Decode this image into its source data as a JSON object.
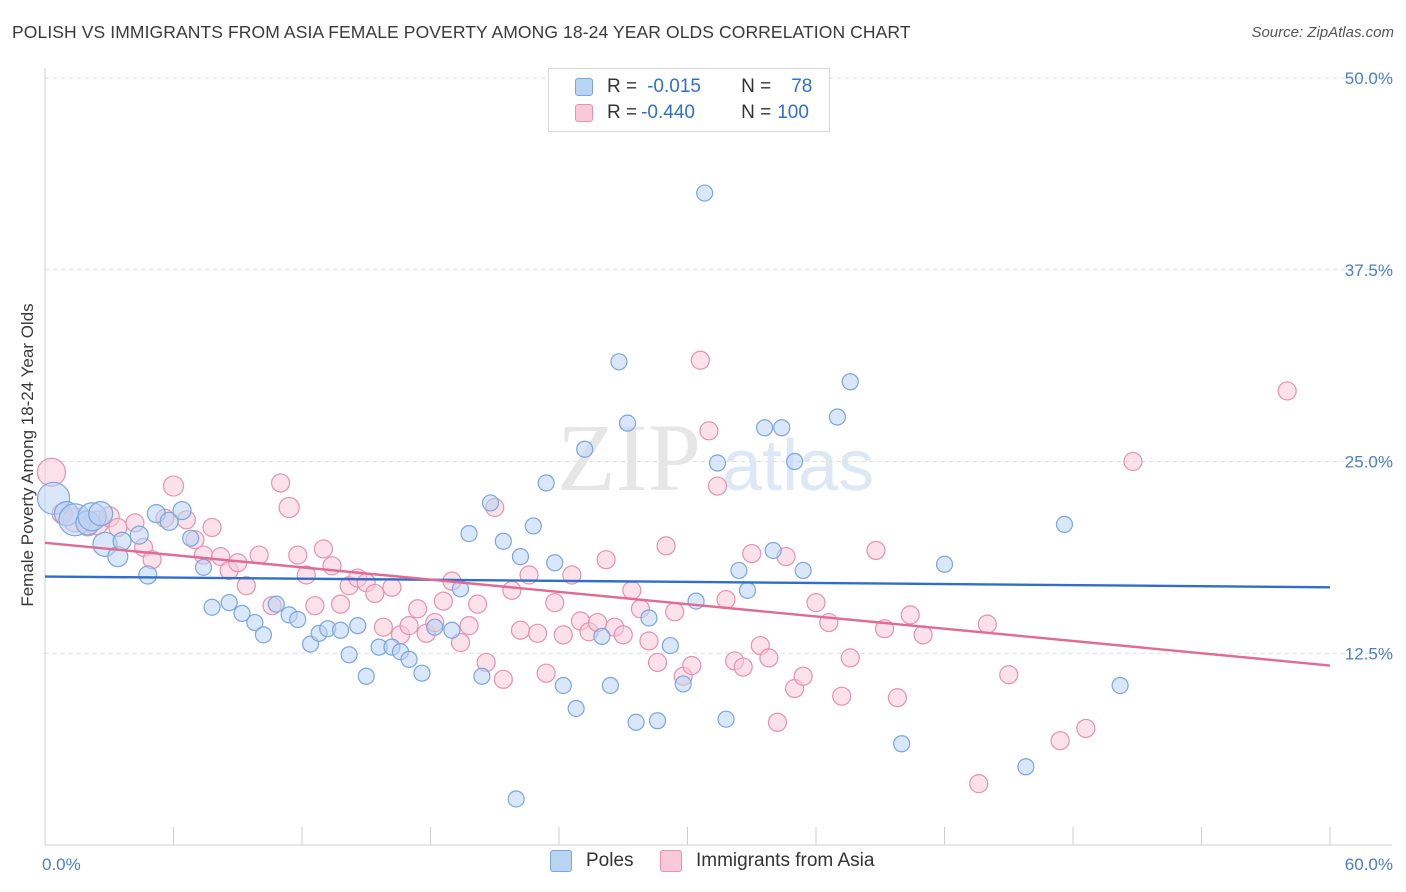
{
  "title": "POLISH VS IMMIGRANTS FROM ASIA FEMALE POVERTY AMONG 18-24 YEAR OLDS CORRELATION CHART",
  "source": "Source: ZipAtlas.com",
  "watermark": {
    "zip": "ZIP",
    "atlas": "atlas"
  },
  "legend_top": {
    "rows": [
      {
        "r_label": "R =",
        "r_value": "-0.015",
        "n_label": "N =",
        "n_value": "78",
        "color": "#b9d3f3"
      },
      {
        "r_label": "R =",
        "r_value": "-0.440",
        "n_label": "N =",
        "n_value": "100",
        "color": "#f8c9d8"
      }
    ]
  },
  "chart_data": {
    "type": "scatter",
    "ylabel": "Female Poverty Among 18-24 Year Olds",
    "xlim": [
      0,
      60
    ],
    "ylim": [
      0,
      50
    ],
    "x_tick_labels": [
      "0.0%",
      "60.0%"
    ],
    "y_ticks": [
      12.5,
      25.0,
      37.5,
      50.0
    ],
    "y_tick_labels": [
      "12.5%",
      "25.0%",
      "37.5%",
      "50.0%"
    ],
    "grid": true,
    "legend_position": "bottom",
    "series": [
      {
        "name": "Poles",
        "color": "#b9d3f3",
        "stroke": "#7aa6de",
        "line_color": "#2f6fcb",
        "trend": {
          "x": [
            0,
            60
          ],
          "y": [
            17.5,
            16.8
          ]
        },
        "points": [
          [
            0.4,
            22.6,
            16
          ],
          [
            1.0,
            21.6,
            12
          ],
          [
            1.4,
            21.2,
            16
          ],
          [
            2.0,
            21.0,
            12
          ],
          [
            2.2,
            21.4,
            14
          ],
          [
            2.6,
            21.6,
            12
          ],
          [
            2.8,
            19.6,
            12
          ],
          [
            3.4,
            18.8,
            10
          ],
          [
            3.6,
            19.8,
            9
          ],
          [
            4.4,
            20.2,
            9
          ],
          [
            4.8,
            17.6,
            9
          ],
          [
            5.2,
            21.6,
            9
          ],
          [
            5.8,
            21.1,
            9
          ],
          [
            6.4,
            21.8,
            9
          ],
          [
            6.8,
            20.0,
            8
          ],
          [
            7.4,
            18.1,
            8
          ],
          [
            7.8,
            15.5,
            8
          ],
          [
            8.6,
            15.8,
            8
          ],
          [
            9.2,
            15.1,
            8
          ],
          [
            9.8,
            14.5,
            8
          ],
          [
            10.2,
            13.7,
            8
          ],
          [
            10.8,
            15.7,
            8
          ],
          [
            11.4,
            15.0,
            8
          ],
          [
            11.8,
            14.7,
            8
          ],
          [
            12.4,
            13.1,
            8
          ],
          [
            12.8,
            13.8,
            8
          ],
          [
            13.2,
            14.1,
            8
          ],
          [
            13.8,
            14.0,
            8
          ],
          [
            14.2,
            12.4,
            8
          ],
          [
            14.6,
            14.3,
            8
          ],
          [
            15.0,
            11.0,
            8
          ],
          [
            15.6,
            12.9,
            8
          ],
          [
            16.2,
            12.9,
            8
          ],
          [
            16.6,
            12.6,
            8
          ],
          [
            17.0,
            12.1,
            8
          ],
          [
            17.6,
            11.2,
            8
          ],
          [
            18.2,
            14.2,
            8
          ],
          [
            19.0,
            14.0,
            8
          ],
          [
            19.4,
            16.7,
            8
          ],
          [
            19.8,
            20.3,
            8
          ],
          [
            20.4,
            11.0,
            8
          ],
          [
            20.8,
            22.3,
            8
          ],
          [
            21.4,
            19.8,
            8
          ],
          [
            22.0,
            3.0,
            8
          ],
          [
            22.2,
            18.8,
            8
          ],
          [
            22.8,
            20.8,
            8
          ],
          [
            23.4,
            23.6,
            8
          ],
          [
            23.8,
            18.4,
            8
          ],
          [
            24.2,
            10.4,
            8
          ],
          [
            24.8,
            8.9,
            8
          ],
          [
            25.2,
            25.8,
            8
          ],
          [
            26.0,
            13.6,
            8
          ],
          [
            26.4,
            10.4,
            8
          ],
          [
            26.8,
            31.5,
            8
          ],
          [
            27.2,
            27.5,
            8
          ],
          [
            27.6,
            8.0,
            8
          ],
          [
            28.2,
            14.8,
            8
          ],
          [
            28.6,
            8.1,
            8
          ],
          [
            29.2,
            13.0,
            8
          ],
          [
            29.8,
            10.5,
            8
          ],
          [
            30.4,
            15.9,
            8
          ],
          [
            30.8,
            42.5,
            8
          ],
          [
            31.4,
            24.9,
            8
          ],
          [
            31.8,
            8.2,
            8
          ],
          [
            32.4,
            17.9,
            8
          ],
          [
            32.8,
            16.6,
            8
          ],
          [
            33.6,
            27.2,
            8
          ],
          [
            34.0,
            19.2,
            8
          ],
          [
            34.4,
            27.2,
            8
          ],
          [
            35.0,
            25.0,
            8
          ],
          [
            35.4,
            17.9,
            8
          ],
          [
            37.0,
            27.9,
            8
          ],
          [
            37.6,
            30.2,
            8
          ],
          [
            40.0,
            6.6,
            8
          ],
          [
            42.0,
            18.3,
            8
          ],
          [
            45.8,
            5.1,
            8
          ],
          [
            47.6,
            20.9,
            8
          ],
          [
            50.2,
            10.4,
            8
          ]
        ]
      },
      {
        "name": "Immigrants from Asia",
        "color": "#f8c9d8",
        "stroke": "#e891b0",
        "line_color": "#e06b95",
        "trend": {
          "x": [
            0,
            60
          ],
          "y": [
            19.7,
            11.7
          ]
        },
        "points": [
          [
            0.3,
            24.3,
            14
          ],
          [
            0.8,
            21.6,
            10
          ],
          [
            1.4,
            21.2,
            12
          ],
          [
            2.0,
            20.8,
            10
          ],
          [
            2.4,
            21.0,
            12
          ],
          [
            3.0,
            21.4,
            10
          ],
          [
            3.4,
            20.7,
            9
          ],
          [
            4.2,
            21.0,
            9
          ],
          [
            4.6,
            19.4,
            9
          ],
          [
            5.0,
            18.6,
            9
          ],
          [
            5.6,
            21.3,
            9
          ],
          [
            6.0,
            23.4,
            10
          ],
          [
            6.6,
            21.2,
            9
          ],
          [
            7.0,
            19.9,
            9
          ],
          [
            7.4,
            18.9,
            9
          ],
          [
            7.8,
            20.7,
            9
          ],
          [
            8.2,
            18.8,
            9
          ],
          [
            8.6,
            17.9,
            9
          ],
          [
            9.0,
            18.4,
            9
          ],
          [
            9.4,
            16.9,
            9
          ],
          [
            10.0,
            18.9,
            9
          ],
          [
            10.6,
            15.6,
            9
          ],
          [
            11.0,
            23.6,
            9
          ],
          [
            11.4,
            22.0,
            10
          ],
          [
            11.8,
            18.9,
            9
          ],
          [
            12.2,
            17.6,
            9
          ],
          [
            12.6,
            15.6,
            9
          ],
          [
            13.0,
            19.3,
            9
          ],
          [
            13.4,
            18.2,
            9
          ],
          [
            13.8,
            15.7,
            9
          ],
          [
            14.2,
            16.9,
            9
          ],
          [
            14.6,
            17.4,
            9
          ],
          [
            15.0,
            17.1,
            9
          ],
          [
            15.4,
            16.4,
            9
          ],
          [
            15.8,
            14.2,
            9
          ],
          [
            16.2,
            16.8,
            9
          ],
          [
            16.6,
            13.7,
            9
          ],
          [
            17.0,
            14.3,
            9
          ],
          [
            17.4,
            15.4,
            9
          ],
          [
            17.8,
            13.8,
            9
          ],
          [
            18.2,
            14.5,
            9
          ],
          [
            18.6,
            15.9,
            9
          ],
          [
            19.0,
            17.2,
            9
          ],
          [
            19.4,
            13.2,
            9
          ],
          [
            19.8,
            14.3,
            9
          ],
          [
            20.2,
            15.7,
            9
          ],
          [
            20.6,
            11.9,
            9
          ],
          [
            21.0,
            22.0,
            9
          ],
          [
            21.4,
            10.8,
            9
          ],
          [
            21.8,
            16.6,
            9
          ],
          [
            22.2,
            14.0,
            9
          ],
          [
            22.6,
            17.6,
            9
          ],
          [
            23.0,
            13.8,
            9
          ],
          [
            23.4,
            11.2,
            9
          ],
          [
            23.8,
            15.8,
            9
          ],
          [
            24.2,
            13.7,
            9
          ],
          [
            24.6,
            17.6,
            9
          ],
          [
            25.0,
            14.6,
            9
          ],
          [
            25.4,
            13.9,
            9
          ],
          [
            25.8,
            14.5,
            9
          ],
          [
            26.2,
            18.6,
            9
          ],
          [
            26.6,
            14.2,
            9
          ],
          [
            27.0,
            13.7,
            9
          ],
          [
            27.4,
            16.6,
            9
          ],
          [
            27.8,
            15.4,
            9
          ],
          [
            28.2,
            13.3,
            9
          ],
          [
            28.6,
            11.9,
            9
          ],
          [
            29.0,
            19.5,
            9
          ],
          [
            29.4,
            15.2,
            9
          ],
          [
            29.8,
            11.0,
            9
          ],
          [
            30.2,
            11.7,
            9
          ],
          [
            30.6,
            31.6,
            9
          ],
          [
            31.0,
            27.0,
            9
          ],
          [
            31.4,
            23.4,
            9
          ],
          [
            31.8,
            16.0,
            9
          ],
          [
            32.2,
            12.0,
            9
          ],
          [
            32.6,
            11.6,
            9
          ],
          [
            33.0,
            19.0,
            9
          ],
          [
            33.4,
            13.0,
            9
          ],
          [
            33.8,
            12.2,
            9
          ],
          [
            34.2,
            8.0,
            9
          ],
          [
            34.6,
            18.8,
            9
          ],
          [
            35.0,
            10.2,
            9
          ],
          [
            35.4,
            11.0,
            9
          ],
          [
            36.0,
            15.8,
            9
          ],
          [
            36.6,
            14.5,
            9
          ],
          [
            37.2,
            9.7,
            9
          ],
          [
            37.6,
            12.2,
            9
          ],
          [
            38.8,
            19.2,
            9
          ],
          [
            39.2,
            14.1,
            9
          ],
          [
            39.8,
            9.6,
            9
          ],
          [
            40.4,
            15.0,
            9
          ],
          [
            41.0,
            13.7,
            9
          ],
          [
            43.6,
            4.0,
            9
          ],
          [
            44.0,
            14.4,
            9
          ],
          [
            45.0,
            11.1,
            9
          ],
          [
            47.4,
            6.8,
            9
          ],
          [
            48.6,
            7.6,
            9
          ],
          [
            50.8,
            25.0,
            9
          ],
          [
            58.0,
            29.6,
            9
          ]
        ]
      }
    ]
  }
}
